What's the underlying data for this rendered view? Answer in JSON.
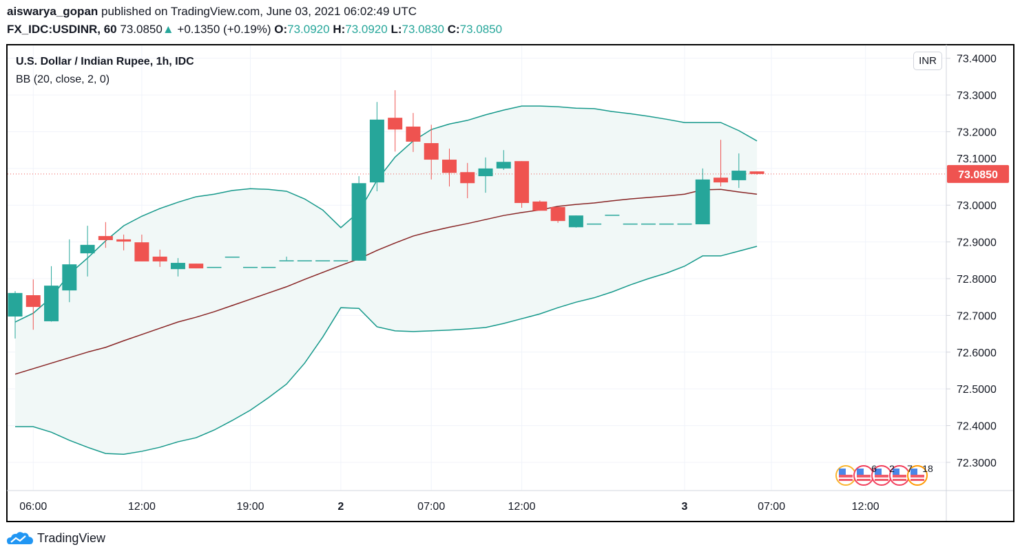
{
  "header": {
    "author": "aiswarya_gopan",
    "published_text": "published on TradingView.com, June 03, 2021 06:02:49 UTC",
    "symbol": "FX_IDC:USDINR, 60",
    "last": "73.0850",
    "change_arrow": "▲",
    "change": "+0.1350 (+0.19%)",
    "o_label": "O:",
    "o": "73.0920",
    "h_label": "H:",
    "h": "73.0920",
    "l_label": "L:",
    "l": "73.0830",
    "c_label": "C:",
    "c": "73.0850"
  },
  "chart_title": "U.S. Dollar / Indian Rupee, 1h, IDC",
  "indicator_label": "BB (20, close, 2, 0)",
  "currency_badge": "INR",
  "last_price_label": "73.0850",
  "events": {
    "icon": "us-flag-icon",
    "counts": [
      "6",
      "2",
      "7",
      "18"
    ]
  },
  "footer": {
    "brand": "TradingView",
    "icon": "tradingview-logo-icon"
  },
  "colors": {
    "up": "#26a69a",
    "down": "#ef5350",
    "band": "#14988a",
    "basis": "#872323",
    "band_fill": "#f1f8f7",
    "last_price": "#ef5350"
  },
  "chart_data": {
    "type": "candlestick",
    "ylim": [
      72.225,
      73.435
    ],
    "y_ticks": [
      "73.4000",
      "73.3000",
      "73.2000",
      "73.1000",
      "73.0000",
      "72.9000",
      "72.8000",
      "72.7000",
      "72.6000",
      "72.5000",
      "72.4000",
      "72.3000"
    ],
    "x_ticks": [
      {
        "label": "06:00",
        "index": 1,
        "bold": false
      },
      {
        "label": "12:00",
        "index": 7,
        "bold": false
      },
      {
        "label": "19:00",
        "index": 13,
        "bold": false
      },
      {
        "label": "2",
        "index": 18,
        "bold": true
      },
      {
        "label": "07:00",
        "index": 23,
        "bold": false
      },
      {
        "label": "12:00",
        "index": 28,
        "bold": false
      },
      {
        "label": "3",
        "index": 37,
        "bold": true
      },
      {
        "label": "07:00",
        "index": 41.8,
        "bold": false
      },
      {
        "label": "12:00",
        "index": 47,
        "bold": false
      }
    ],
    "last_price": 73.085,
    "candles": [
      [
        72.697,
        72.766,
        72.637,
        72.761
      ],
      [
        72.755,
        72.798,
        72.661,
        72.723
      ],
      [
        72.684,
        72.834,
        72.683,
        72.781
      ],
      [
        72.768,
        72.907,
        72.736,
        72.839
      ],
      [
        72.869,
        72.944,
        72.806,
        72.892
      ],
      [
        72.916,
        72.954,
        72.884,
        72.905
      ],
      [
        72.907,
        72.92,
        72.877,
        72.901
      ],
      [
        72.899,
        72.92,
        72.847,
        72.847
      ],
      [
        72.86,
        72.879,
        72.832,
        72.847
      ],
      [
        72.826,
        72.856,
        72.806,
        72.843
      ],
      [
        72.841,
        72.841,
        72.828,
        72.828
      ],
      [
        72.832,
        72.832,
        72.832,
        72.832
      ],
      [
        72.86,
        72.86,
        72.86,
        72.86
      ],
      [
        72.832,
        72.832,
        72.832,
        72.832
      ],
      [
        72.832,
        72.832,
        72.832,
        72.832
      ],
      [
        72.85,
        72.86,
        72.85,
        72.85
      ],
      [
        72.85,
        72.85,
        72.85,
        72.85
      ],
      [
        72.85,
        72.85,
        72.85,
        72.85
      ],
      [
        72.85,
        72.85,
        72.85,
        72.85
      ],
      [
        72.849,
        73.079,
        72.849,
        73.06
      ],
      [
        73.062,
        73.281,
        73.038,
        73.233
      ],
      [
        73.238,
        73.313,
        73.146,
        73.206
      ],
      [
        73.214,
        73.251,
        73.145,
        73.173
      ],
      [
        73.169,
        73.219,
        73.07,
        73.124
      ],
      [
        73.124,
        73.154,
        73.051,
        73.088
      ],
      [
        73.09,
        73.115,
        73.019,
        73.06
      ],
      [
        73.079,
        73.13,
        73.034,
        73.1
      ],
      [
        73.1,
        73.15,
        73.096,
        73.118
      ],
      [
        73.12,
        73.12,
        72.993,
        73.006
      ],
      [
        73.01,
        73.013,
        72.985,
        72.985
      ],
      [
        72.995,
        72.995,
        72.952,
        72.957
      ],
      [
        72.94,
        72.972,
        72.939,
        72.972
      ],
      [
        72.95,
        72.95,
        72.95,
        72.95
      ],
      [
        72.974,
        72.974,
        72.974,
        72.974
      ],
      [
        72.95,
        72.95,
        72.95,
        72.95
      ],
      [
        72.95,
        72.95,
        72.95,
        72.95
      ],
      [
        72.95,
        72.95,
        72.95,
        72.95
      ],
      [
        72.95,
        72.95,
        72.95,
        72.95
      ],
      [
        72.948,
        73.1,
        72.948,
        73.07
      ],
      [
        73.075,
        73.178,
        73.051,
        73.062
      ],
      [
        73.068,
        73.141,
        73.047,
        73.094
      ],
      [
        73.092,
        73.092,
        73.083,
        73.085
      ]
    ],
    "bb_upper": [
      72.682,
      72.706,
      72.749,
      72.813,
      72.856,
      72.903,
      72.944,
      72.97,
      72.991,
      73.008,
      73.023,
      73.03,
      73.04,
      73.045,
      73.043,
      73.038,
      73.017,
      72.987,
      72.939,
      72.982,
      73.068,
      73.131,
      73.175,
      73.206,
      73.221,
      73.231,
      73.246,
      73.259,
      73.27,
      73.27,
      73.268,
      73.264,
      73.263,
      73.255,
      73.249,
      73.242,
      73.234,
      73.225,
      73.225,
      73.225,
      73.203,
      73.175
    ],
    "bb_basis": [
      72.54,
      72.555,
      72.57,
      72.585,
      72.6,
      72.613,
      72.631,
      72.648,
      72.665,
      72.682,
      72.695,
      72.71,
      72.727,
      72.744,
      72.761,
      72.778,
      72.798,
      72.817,
      72.836,
      72.854,
      72.877,
      72.897,
      72.916,
      72.929,
      72.94,
      72.95,
      72.961,
      72.972,
      72.98,
      72.987,
      72.997,
      73.002,
      73.006,
      73.012,
      73.017,
      73.021,
      73.025,
      73.03,
      73.042,
      73.043,
      73.036,
      73.03
    ],
    "bb_lower": [
      72.397,
      72.397,
      72.382,
      72.36,
      72.341,
      72.324,
      72.322,
      72.33,
      72.341,
      72.356,
      72.367,
      72.388,
      72.414,
      72.442,
      72.476,
      72.513,
      72.57,
      72.641,
      72.721,
      72.719,
      72.669,
      72.658,
      72.656,
      72.658,
      72.66,
      72.663,
      72.667,
      72.678,
      72.691,
      72.704,
      72.721,
      72.736,
      72.748,
      72.764,
      72.783,
      72.8,
      72.815,
      72.834,
      72.862,
      72.862,
      72.875,
      72.888
    ]
  }
}
